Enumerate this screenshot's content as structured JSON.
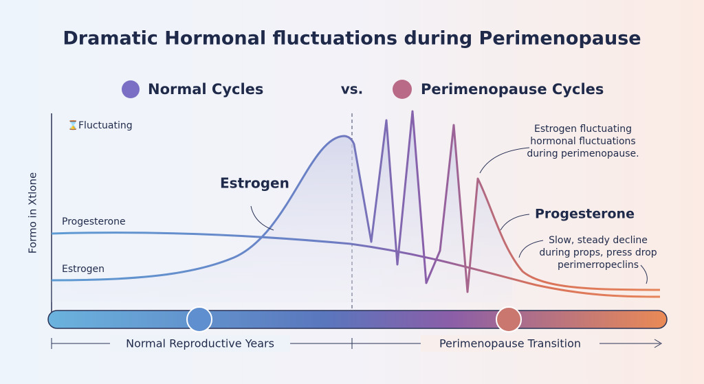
{
  "header": {
    "title": "Dramatic Hormonal fluctuations during Perimenopause",
    "left_heading": "Normal Cycles",
    "versus": "vs.",
    "right_heading": "Perimenopause Cycles"
  },
  "chart": {
    "legend_note": "Fluctuating",
    "y_axis_label": "Formo in Xtlone",
    "left_labels": [
      "Progesterone",
      "Estrogen"
    ],
    "estrogen_label": "Estrogen",
    "progesterone_label": "Progesterone",
    "estrogen_note": [
      "Estrogen fluctuating",
      "hormonal fluctuations",
      "during perimenopause."
    ],
    "progesterone_note": [
      "Slow, steady decline",
      "during props, press drop",
      "perimerropeclins"
    ]
  },
  "timeline": {
    "left": "Normal Reproductive Years",
    "right": "Perimenopause Transition"
  }
}
